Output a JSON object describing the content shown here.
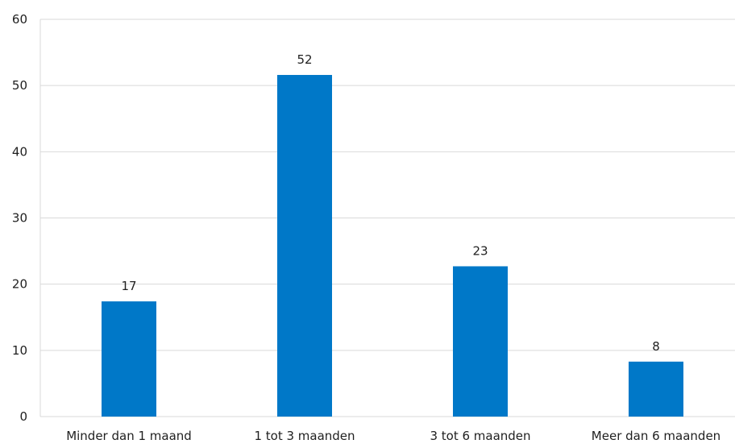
{
  "chart_data": {
    "type": "bar",
    "title": "",
    "xlabel": "",
    "ylabel": "",
    "categories": [
      "Minder dan 1 maand",
      "1 tot 3 maanden",
      "3 tot 6 maanden",
      "Meer dan 6 maanden"
    ],
    "values": [
      17.4,
      51.6,
      22.7,
      8.3
    ],
    "data_labels": [
      "17",
      "52",
      "23",
      "8"
    ],
    "ylim": [
      0,
      60
    ],
    "yticks": [
      "0",
      "10",
      "20",
      "30",
      "40",
      "50",
      "60"
    ],
    "grid": true,
    "legend": "none",
    "bar_color": "#0078c8",
    "grid_color": "#d9d9d9"
  }
}
